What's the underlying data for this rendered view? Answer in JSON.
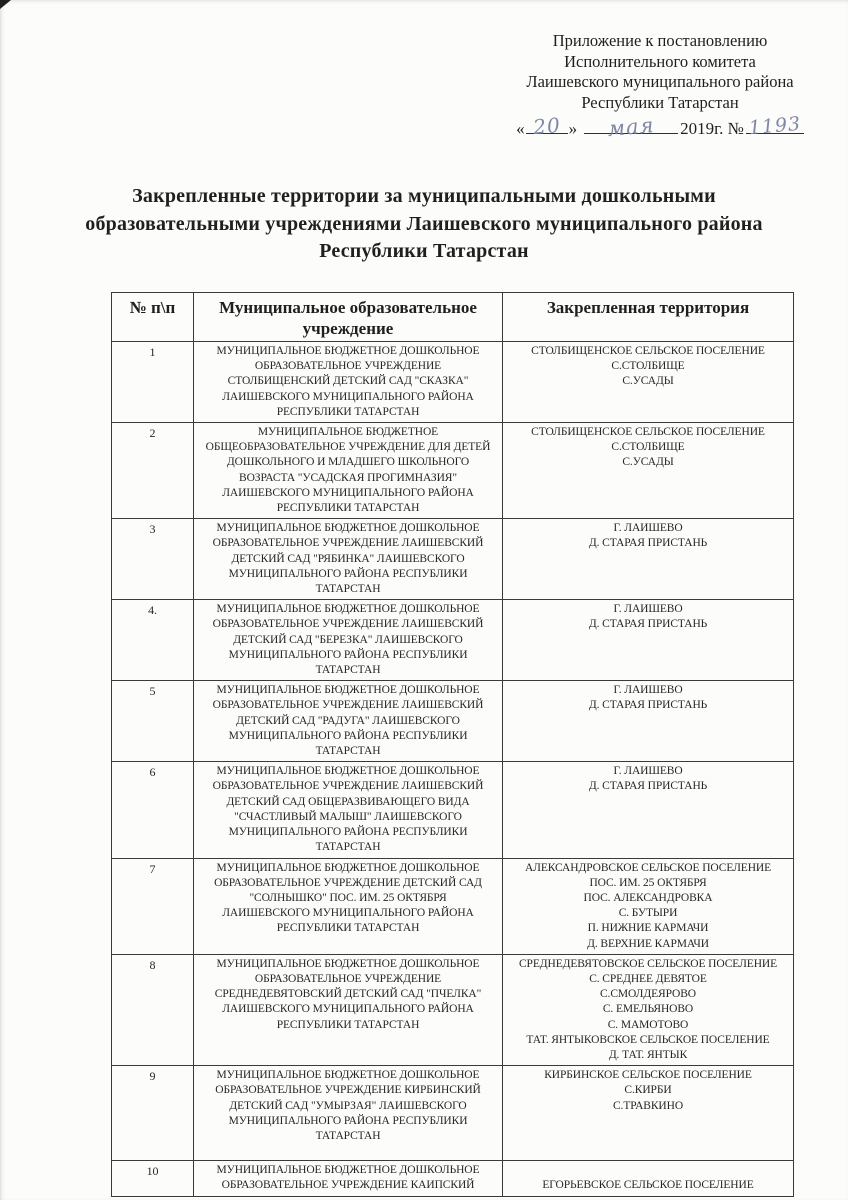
{
  "colors": {
    "ink": "#7f87a6",
    "line": "#3a3a38",
    "text": "#1f1f1f"
  },
  "header": {
    "lines": [
      "Приложение к постановлению",
      "Исполнительного комитета",
      "Лаишевского муниципального района",
      "Республики Татарстан"
    ],
    "date": {
      "open_quote": "«",
      "day": "20",
      "close_quote": "»",
      "month": "мая",
      "year_label": "2019г. №",
      "number": "1193"
    }
  },
  "title_lines": [
    "Закрепленные территории за муниципальными дошкольными",
    "образовательными учреждениями Лаишевского муниципального района",
    "Республики Татарстан"
  ],
  "table": {
    "headers": [
      "№ п\\п",
      "Муниципальное образовательное учреждение",
      "Закрепленная территория"
    ],
    "rows": [
      {
        "num": "1",
        "institution_lines": [
          "МУНИЦИПАЛЬНОЕ БЮДЖЕТНОЕ ДОШКОЛЬНОЕ",
          "ОБРАЗОВАТЕЛЬНОЕ УЧРЕЖДЕНИЕ",
          "СТОЛБИЩЕНСКИЙ ДЕТСКИЙ САД \"СКАЗКА\"",
          "ЛАИШЕВСКОГО МУНИЦИПАЛЬНОГО РАЙОНА",
          "РЕСПУБЛИКИ ТАТАРСТАН"
        ],
        "territory_lines": [
          "СТОЛБИЩЕНСКОЕ СЕЛЬСКОЕ ПОСЕЛЕНИЕ",
          "С.СТОЛБИЩЕ",
          "С.УСАДЫ"
        ]
      },
      {
        "num": "2",
        "institution_lines": [
          "МУНИЦИПАЛЬНОЕ БЮДЖЕТНОЕ",
          "ОБЩЕОБРАЗОВАТЕЛЬНОЕ УЧРЕЖДЕНИЕ ДЛЯ ДЕТЕЙ",
          "ДОШКОЛЬНОГО И МЛАДШЕГО ШКОЛЬНОГО",
          "ВОЗРАСТА \"УСАДСКАЯ ПРОГИМНАЗИЯ\"",
          "ЛАИШЕВСКОГО МУНИЦИПАЛЬНОГО РАЙОНА",
          "РЕСПУБЛИКИ ТАТАРСТАН"
        ],
        "territory_lines": [
          "СТОЛБИЩЕНСКОЕ СЕЛЬСКОЕ ПОСЕЛЕНИЕ",
          "С.СТОЛБИЩЕ",
          "С.УСАДЫ"
        ]
      },
      {
        "num": "3",
        "institution_lines": [
          "МУНИЦИПАЛЬНОЕ БЮДЖЕТНОЕ ДОШКОЛЬНОЕ",
          "ОБРАЗОВАТЕЛЬНОЕ УЧРЕЖДЕНИЕ ЛАИШЕВСКИЙ",
          "ДЕТСКИЙ САД \"РЯБИНКА\" ЛАИШЕВСКОГО",
          "МУНИЦИПАЛЬНОГО РАЙОНА РЕСПУБЛИКИ",
          "ТАТАРСТАН"
        ],
        "territory_lines": [
          "Г. ЛАИШЕВО",
          "Д. СТАРАЯ ПРИСТАНЬ"
        ]
      },
      {
        "num": "4.",
        "institution_lines": [
          "МУНИЦИПАЛЬНОЕ БЮДЖЕТНОЕ ДОШКОЛЬНОЕ",
          "ОБРАЗОВАТЕЛЬНОЕ УЧРЕЖДЕНИЕ ЛАИШЕВСКИЙ",
          "ДЕТСКИЙ САД \"БЕРЕЗКА\" ЛАИШЕВСКОГО",
          "МУНИЦИПАЛЬНОГО РАЙОНА РЕСПУБЛИКИ",
          "ТАТАРСТАН"
        ],
        "territory_lines": [
          "Г. ЛАИШЕВО",
          "Д. СТАРАЯ ПРИСТАНЬ"
        ]
      },
      {
        "num": "5",
        "institution_lines": [
          "МУНИЦИПАЛЬНОЕ БЮДЖЕТНОЕ ДОШКОЛЬНОЕ",
          "ОБРАЗОВАТЕЛЬНОЕ УЧРЕЖДЕНИЕ ЛАИШЕВСКИЙ",
          "ДЕТСКИЙ САД \"РАДУГА\" ЛАИШЕВСКОГО",
          "МУНИЦИПАЛЬНОГО РАЙОНА РЕСПУБЛИКИ",
          "ТАТАРСТАН"
        ],
        "territory_lines": [
          "Г. ЛАИШЕВО",
          "Д. СТАРАЯ ПРИСТАНЬ"
        ]
      },
      {
        "num": "6",
        "institution_lines": [
          "МУНИЦИПАЛЬНОЕ БЮДЖЕТНОЕ ДОШКОЛЬНОЕ",
          "ОБРАЗОВАТЕЛЬНОЕ УЧРЕЖДЕНИЕ ЛАИШЕВСКИЙ",
          "ДЕТСКИЙ САД ОБЩЕРАЗВИВАЮЩЕГО ВИДА",
          "\"СЧАСТЛИВЫЙ МАЛЫШ\" ЛАИШЕВСКОГО",
          "МУНИЦИПАЛЬНОГО РАЙОНА РЕСПУБЛИКИ",
          "ТАТАРСТАН"
        ],
        "territory_lines": [
          "Г. ЛАИШЕВО",
          "Д. СТАРАЯ ПРИСТАНЬ"
        ]
      },
      {
        "num": "7",
        "institution_lines": [
          "МУНИЦИПАЛЬНОЕ БЮДЖЕТНОЕ ДОШКОЛЬНОЕ",
          "ОБРАЗОВАТЕЛЬНОЕ УЧРЕЖДЕНИЕ ДЕТСКИЙ САД",
          "\"СОЛНЫШКО\" ПОС. ИМ. 25 ОКТЯБРЯ",
          "ЛАИШЕВСКОГО МУНИЦИПАЛЬНОГО РАЙОНА",
          "РЕСПУБЛИКИ ТАТАРСТАН"
        ],
        "territory_lines": [
          "АЛЕКСАНДРОВСКОЕ СЕЛЬСКОЕ ПОСЕЛЕНИЕ",
          "ПОС.  ИМ. 25 ОКТЯБРЯ",
          "ПОС. АЛЕКСАНДРОВКА",
          "С. БУТЫРИ",
          "П. НИЖНИЕ КАРМАЧИ",
          "Д. ВЕРХНИЕ КАРМАЧИ"
        ]
      },
      {
        "num": "8",
        "institution_lines": [
          "МУНИЦИПАЛЬНОЕ БЮДЖЕТНОЕ ДОШКОЛЬНОЕ",
          "ОБРАЗОВАТЕЛЬНОЕ УЧРЕЖДЕНИЕ",
          "СРЕДНЕДЕВЯТОВСКИЙ ДЕТСКИЙ САД \"ПЧЕЛКА\"",
          "ЛАИШЕВСКОГО МУНИЦИПАЛЬНОГО РАЙОНА",
          "РЕСПУБЛИКИ ТАТАРСТАН"
        ],
        "territory_lines": [
          "СРЕДНЕДЕВЯТОВСКОЕ СЕЛЬСКОЕ ПОСЕЛЕНИЕ",
          "С. СРЕДНЕЕ ДЕВЯТОЕ",
          "С.СМОЛДЕЯРОВО",
          "С. ЕМЕЛЬЯНОВО",
          "С. МАМОТОВО",
          "ТАТ. ЯНТЫКОВСКОЕ СЕЛЬСКОЕ ПОСЕЛЕНИЕ",
          "Д. ТАТ. ЯНТЫК"
        ]
      },
      {
        "num": "9",
        "extra_space": true,
        "institution_lines": [
          "МУНИЦИПАЛЬНОЕ БЮДЖЕТНОЕ ДОШКОЛЬНОЕ",
          "ОБРАЗОВАТЕЛЬНОЕ УЧРЕЖДЕНИЕ КИРБИНСКИЙ",
          "ДЕТСКИЙ САД \"УМЫРЗАЯ\" ЛАИШЕВСКОГО",
          "МУНИЦИПАЛЬНОГО РАЙОНА РЕСПУБЛИКИ",
          "ТАТАРСТАН"
        ],
        "territory_lines": [
          "КИРБИНСКОЕ СЕЛЬСКОЕ ПОСЕЛЕНИЕ",
          "С.КИРБИ",
          "С.ТРАВКИНО"
        ]
      },
      {
        "num": "10",
        "institution_lines": [
          "МУНИЦИПАЛЬНОЕ БЮДЖЕТНОЕ ДОШКОЛЬНОЕ",
          "ОБРАЗОВАТЕЛЬНОЕ УЧРЕЖДЕНИЕ КАИПСКИЙ"
        ],
        "territory_lines": [
          "",
          "ЕГОРЬЕВСКОЕ СЕЛЬСКОЕ ПОСЕЛЕНИЕ"
        ]
      }
    ]
  }
}
